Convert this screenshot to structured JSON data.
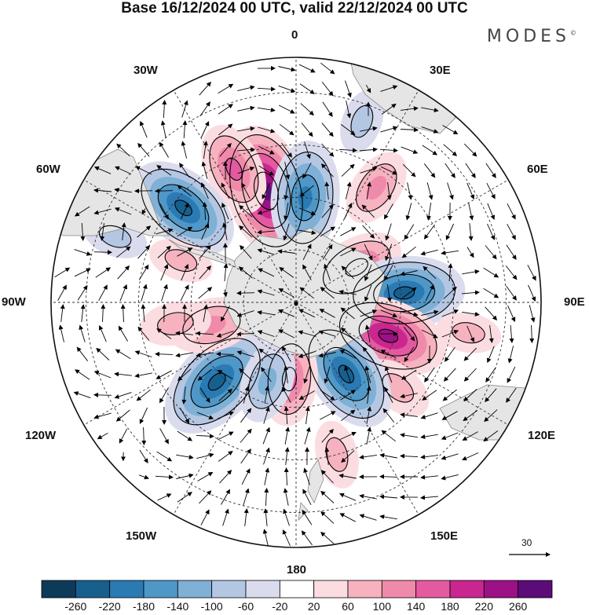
{
  "title": "Base 16/12/2024 00 UTC, valid 22/12/2024 00 UTC",
  "brand": {
    "name": "MODES",
    "mark": "©"
  },
  "longitude_labels": {
    "lon_0": "0",
    "lon_30e": "30E",
    "lon_60e": "60E",
    "lon_90e": "90E",
    "lon_120e": "120E",
    "lon_150e": "150E",
    "lon_180": "180",
    "lon_150w": "150W",
    "lon_120w": "120W",
    "lon_90w": "90W",
    "lon_60w": "60W",
    "lon_30w": "30W"
  },
  "reference_vector": {
    "value": "30"
  },
  "colorbar": {
    "colors": [
      "#0e3a5a",
      "#17608e",
      "#2a7ab3",
      "#4f97c6",
      "#7fb0d6",
      "#b3c7e3",
      "#dadcee",
      "#ffffff",
      "#fbdde1",
      "#f6b3bf",
      "#f08aaa",
      "#e45aa0",
      "#c9268f",
      "#9c1186",
      "#5c0c79"
    ],
    "ticks": [
      "-260",
      "-220",
      "-180",
      "-140",
      "-100",
      "-60",
      "-20",
      "20",
      "60",
      "100",
      "140",
      "180",
      "220",
      "260"
    ]
  },
  "anomalies": [
    {
      "lon": 345,
      "colat": 33,
      "value": 275
    },
    {
      "lon": 335,
      "colat": 42,
      "value": 150
    },
    {
      "lon": 5,
      "colat": 30,
      "value": -215
    },
    {
      "lon": 35,
      "colat": 40,
      "value": 105
    },
    {
      "lon": 310,
      "colat": 42,
      "value": -225
    },
    {
      "lon": 290,
      "colat": 55,
      "value": -60
    },
    {
      "lon": 60,
      "colat": 20,
      "value": 160
    },
    {
      "lon": 85,
      "colat": 31,
      "value": -240
    },
    {
      "lon": 110,
      "colat": 28,
      "value": 235
    },
    {
      "lon": 130,
      "colat": 38,
      "value": 80
    },
    {
      "lon": 145,
      "colat": 25,
      "value": -230
    },
    {
      "lon": 185,
      "colat": 22,
      "value": 150
    },
    {
      "lon": 225,
      "colat": 32,
      "value": -250
    },
    {
      "lon": 200,
      "colat": 24,
      "value": -120
    },
    {
      "lon": 255,
      "colat": 25,
      "value": 130
    },
    {
      "lon": 260,
      "colat": 35,
      "value": 80
    },
    {
      "lon": 290,
      "colat": 35,
      "value": 60
    },
    {
      "lon": 20,
      "colat": 55,
      "value": -60
    },
    {
      "lon": 165,
      "colat": 45,
      "value": 70
    },
    {
      "lon": 100,
      "colat": 50,
      "value": 60
    }
  ]
}
